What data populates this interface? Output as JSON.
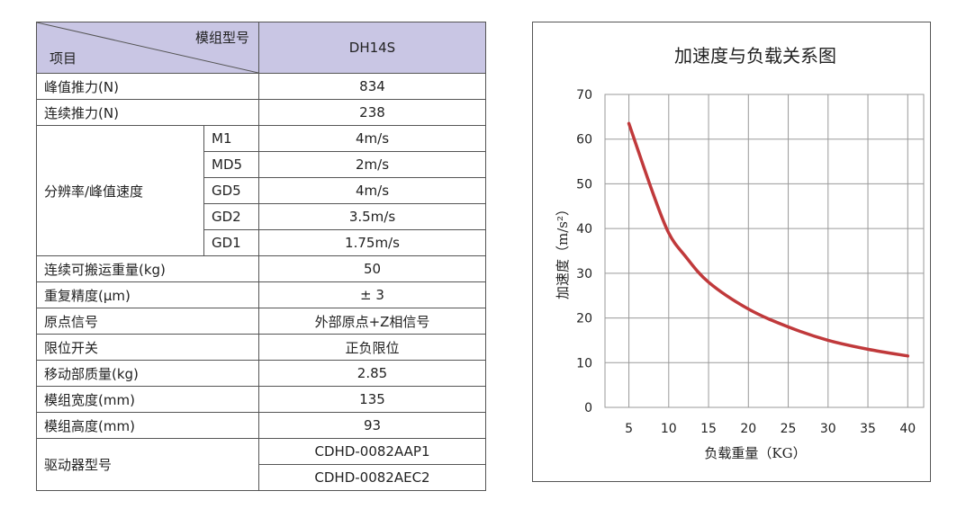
{
  "table": {
    "header": {
      "item_label": "项目",
      "model_label": "模组型号",
      "model_value": "DH14S"
    },
    "rows": {
      "peak_thrust": {
        "label": "峰值推力(N)",
        "value": "834"
      },
      "continuous_thrust": {
        "label": "连续推力(N)",
        "value": "238"
      },
      "resolution": {
        "label": "分辨率/峰值速度",
        "items": [
          {
            "code": "M1",
            "value": "4m/s"
          },
          {
            "code": "MD5",
            "value": "2m/s"
          },
          {
            "code": "GD5",
            "value": "4m/s"
          },
          {
            "code": "GD2",
            "value": "3.5m/s"
          },
          {
            "code": "GD1",
            "value": "1.75m/s"
          }
        ]
      },
      "continuous_load": {
        "label": "连续可搬运重量(kg)",
        "value": "50"
      },
      "repeat_accuracy": {
        "label": "重复精度(μm)",
        "value": "± 3"
      },
      "origin_signal": {
        "label": "原点信号",
        "value": "外部原点+Z相信号"
      },
      "limit_switch": {
        "label": "限位开关",
        "value": "正负限位"
      },
      "moving_mass": {
        "label": "移动部质量(kg)",
        "value": "2.85"
      },
      "module_width": {
        "label": "模组宽度(mm)",
        "value": "135"
      },
      "module_height": {
        "label": "模组高度(mm)",
        "value": "93"
      },
      "driver_model": {
        "label": "驱动器型号",
        "values": [
          "CDHD-0082AAP1",
          "CDHD-0082AEC2"
        ]
      }
    }
  },
  "chart_data": {
    "type": "line",
    "title": "加速度与负载关系图",
    "xlabel": "负载重量（KG）",
    "ylabel": "加速度（m/s²）",
    "xlim": [
      2,
      42
    ],
    "ylim": [
      0,
      70
    ],
    "xticks": [
      5,
      10,
      15,
      20,
      25,
      30,
      35,
      40
    ],
    "yticks": [
      0,
      10,
      20,
      30,
      40,
      50,
      60,
      70
    ],
    "grid": true,
    "series": [
      {
        "color": "#c0393b",
        "x": [
          5,
          8,
          10,
          12,
          15,
          20,
          25,
          30,
          35,
          40
        ],
        "y": [
          63.5,
          48,
          39,
          34,
          28,
          22,
          18,
          15,
          13,
          11.5
        ]
      }
    ]
  }
}
